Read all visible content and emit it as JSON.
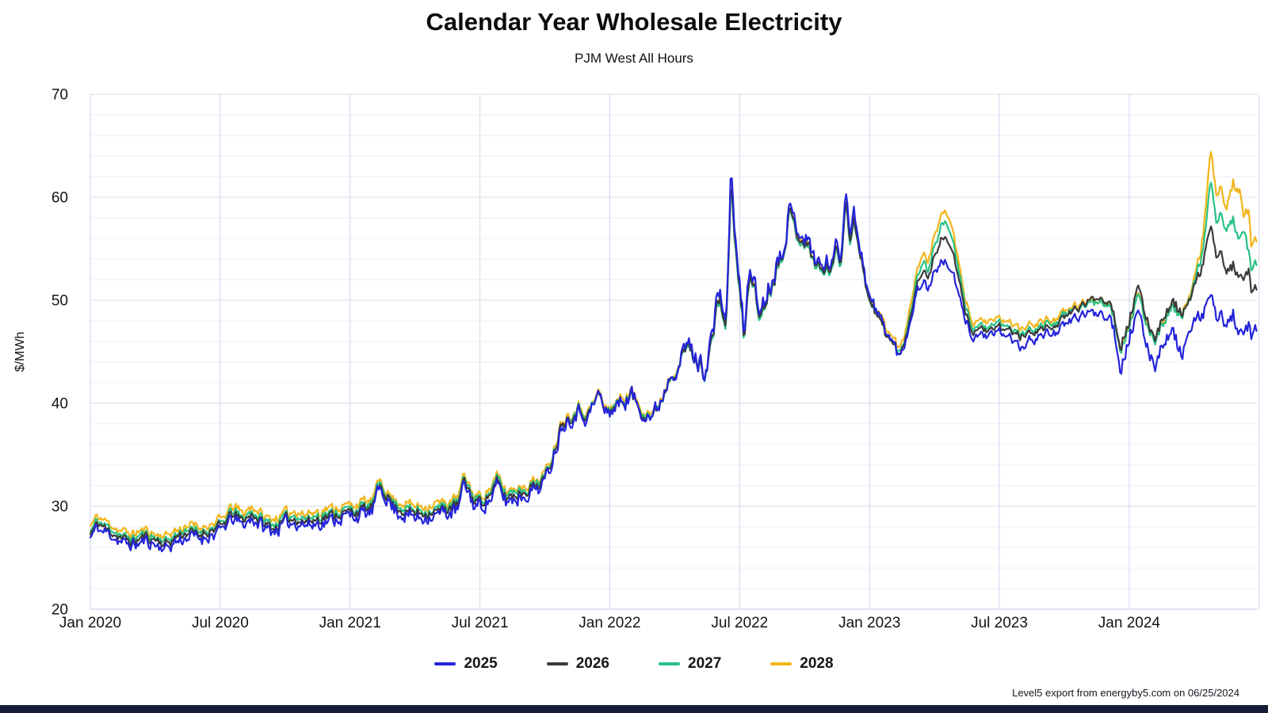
{
  "title": "Calendar Year Wholesale Electricity",
  "subtitle": "PJM West All Hours",
  "footer_note": "Level5 export from energyby5.com on 06/25/2024",
  "chart_data": {
    "type": "line",
    "title": "Calendar Year Wholesale Electricity",
    "subtitle": "PJM West All Hours",
    "xlabel": "",
    "ylabel": "$/MWh",
    "ylim": [
      20,
      70
    ],
    "y_major_ticks": [
      20,
      30,
      40,
      50,
      60,
      70
    ],
    "y_minor_step": 2,
    "x_unit": "months since Jan 2020",
    "xlim": [
      0,
      53.9
    ],
    "x_ticks": [
      {
        "pos": 0,
        "label": "Jan 2020"
      },
      {
        "pos": 6,
        "label": "Jul 2020"
      },
      {
        "pos": 12,
        "label": "Jan 2021"
      },
      {
        "pos": 18,
        "label": "Jul 2021"
      },
      {
        "pos": 24,
        "label": "Jan 2022"
      },
      {
        "pos": 30,
        "label": "Jul 2022"
      },
      {
        "pos": 36,
        "label": "Jan 2023"
      },
      {
        "pos": 42,
        "label": "Jul 2023"
      },
      {
        "pos": 48,
        "label": "Jan 2024"
      }
    ],
    "x_grid_positions": [
      0,
      6,
      12,
      18,
      24,
      30,
      36,
      42,
      48,
      54
    ],
    "grid": true,
    "legend_position": "bottom",
    "anchors_x": [
      0,
      0.3,
      1,
      1.5,
      2,
      2.5,
      3,
      3.5,
      4,
      4.5,
      5,
      5.5,
      6,
      6.6,
      7,
      7.5,
      8,
      8.5,
      9,
      9.5,
      10,
      10.5,
      11,
      11.5,
      12,
      12.5,
      13,
      13.4,
      13.8,
      14,
      14.5,
      15,
      15.5,
      16,
      16.5,
      17,
      17.3,
      17.7,
      18,
      18.4,
      18.8,
      19.2,
      19.6,
      20,
      20.5,
      21,
      21.4,
      21.8,
      22.2,
      22.6,
      23,
      23.5,
      23.8,
      24.2,
      24.6,
      25,
      25.4,
      26,
      26.4,
      26.8,
      27.2,
      27.6,
      28,
      28.4,
      28.8,
      29.1,
      29.35,
      29.6,
      29.9,
      30.2,
      30.5,
      30.9,
      31.3,
      31.7,
      32,
      32.3,
      32.7,
      33,
      33.4,
      33.8,
      34.2,
      34.5,
      34.7,
      34.9,
      35.1,
      35.3,
      35.6,
      36,
      36.5,
      37,
      37.4,
      37.7,
      38,
      38.4,
      38.7,
      39,
      39.4,
      39.7,
      40,
      40.4,
      40.8,
      41.2,
      41.6,
      42,
      42.5,
      43,
      43.5,
      44,
      44.5,
      45,
      45.5,
      46,
      46.5,
      47,
      47.3,
      47.6,
      48,
      48.4,
      48.8,
      49.2,
      49.6,
      50,
      50.4,
      50.7,
      51,
      51.3,
      51.55,
      51.75,
      52,
      52.2,
      52.5,
      52.8,
      53.1,
      53.3,
      53.5,
      53.65,
      53.8
    ],
    "series": [
      {
        "name": "2025",
        "color": "#2424DB",
        "values": [
          26.9,
          27.9,
          27.1,
          26.4,
          26.2,
          26.6,
          26.3,
          25.9,
          26.6,
          27.1,
          26.8,
          27.2,
          27.5,
          28.9,
          28.2,
          28.8,
          27.9,
          27.6,
          28.2,
          28.5,
          28.1,
          28.4,
          28.6,
          28.9,
          29.0,
          29.2,
          29.4,
          31.9,
          30.4,
          29.7,
          29.2,
          28.9,
          29.0,
          29.1,
          29.3,
          29.7,
          32.3,
          30.1,
          30.0,
          30.5,
          31.9,
          30.4,
          30.8,
          31.0,
          31.6,
          32.3,
          35.0,
          38.0,
          38.6,
          39.3,
          38.6,
          41.1,
          38.9,
          39.6,
          40.2,
          40.8,
          39.5,
          38.7,
          40.5,
          43.0,
          44.0,
          45.9,
          44.2,
          43.3,
          47.5,
          51.5,
          46.8,
          62.5,
          53.5,
          46.8,
          54.0,
          48.8,
          51.0,
          53.5,
          55.5,
          58.8,
          57.0,
          56.3,
          54.6,
          53.2,
          53.8,
          55.4,
          54.0,
          62.0,
          56.5,
          58.5,
          55.0,
          50.2,
          48.2,
          46.2,
          44.3,
          46.5,
          49.3,
          52.0,
          51.2,
          52.8,
          53.8,
          53.3,
          51.5,
          48.2,
          46.3,
          46.8,
          46.4,
          46.9,
          46.4,
          45.2,
          46.2,
          46.6,
          46.9,
          47.5,
          48.3,
          48.6,
          48.9,
          48.7,
          47.4,
          43.4,
          46.5,
          48.6,
          45.6,
          43.9,
          46.1,
          47.0,
          44.6,
          46.5,
          47.5,
          48.4,
          49.5,
          50.4,
          48.3,
          49.3,
          47.2,
          48.6,
          46.4,
          46.2,
          47.6,
          45.9,
          46.9
        ]
      },
      {
        "name": "2026",
        "color": "#3B3B3B",
        "values": [
          27.3,
          28.3,
          27.5,
          26.8,
          26.6,
          27.0,
          26.7,
          26.4,
          27.0,
          27.5,
          27.2,
          27.6,
          27.9,
          29.3,
          28.6,
          29.2,
          28.3,
          28.0,
          28.6,
          28.9,
          28.5,
          28.8,
          29.0,
          29.3,
          29.4,
          29.6,
          29.8,
          32.1,
          30.7,
          30.1,
          29.6,
          29.3,
          29.4,
          29.5,
          29.7,
          30.1,
          32.6,
          30.5,
          30.4,
          30.9,
          32.3,
          30.8,
          31.2,
          31.4,
          32.0,
          32.6,
          35.2,
          38.2,
          38.8,
          39.4,
          38.8,
          41.0,
          39.0,
          39.7,
          40.2,
          40.7,
          39.5,
          38.7,
          40.4,
          42.8,
          43.8,
          45.6,
          44.0,
          43.1,
          47.0,
          50.8,
          46.4,
          61.5,
          53.0,
          46.4,
          53.4,
          48.4,
          50.6,
          53.0,
          55.0,
          58.4,
          56.5,
          55.8,
          54.1,
          52.8,
          53.3,
          54.8,
          53.5,
          60.8,
          55.8,
          57.8,
          54.5,
          49.8,
          47.9,
          46.0,
          44.4,
          46.7,
          49.8,
          53.0,
          52.2,
          54.3,
          56.2,
          55.6,
          53.2,
          49.0,
          46.9,
          47.3,
          46.9,
          47.4,
          47.0,
          46.4,
          46.9,
          47.2,
          47.5,
          48.2,
          49.1,
          49.7,
          50.3,
          50.2,
          48.9,
          45.5,
          48.0,
          51.2,
          48.1,
          46.5,
          48.6,
          49.8,
          48.8,
          49.5,
          51.0,
          52.8,
          55.0,
          57.1,
          54.3,
          55.2,
          52.4,
          53.4,
          52.0,
          51.6,
          52.9,
          50.4,
          51.0
        ]
      },
      {
        "name": "2027",
        "color": "#28C285",
        "values": [
          27.6,
          28.6,
          27.8,
          27.1,
          26.9,
          27.3,
          27.0,
          26.7,
          27.3,
          27.8,
          27.5,
          27.9,
          28.2,
          29.6,
          28.9,
          29.5,
          28.6,
          28.3,
          28.9,
          29.2,
          28.8,
          29.1,
          29.3,
          29.6,
          29.7,
          29.9,
          30.1,
          32.3,
          30.9,
          30.4,
          29.9,
          29.6,
          29.7,
          29.8,
          30.0,
          30.4,
          32.8,
          30.8,
          30.7,
          31.2,
          32.6,
          31.1,
          31.5,
          31.7,
          32.2,
          32.8,
          35.3,
          38.3,
          38.9,
          39.5,
          38.9,
          41.0,
          39.1,
          39.8,
          40.3,
          40.8,
          39.6,
          38.8,
          40.4,
          42.8,
          43.8,
          45.5,
          44.0,
          43.0,
          46.8,
          50.5,
          46.2,
          60.9,
          52.8,
          46.2,
          53.2,
          48.2,
          50.4,
          52.8,
          54.8,
          58.2,
          56.3,
          55.6,
          53.9,
          52.6,
          53.1,
          54.6,
          53.3,
          60.4,
          55.5,
          57.5,
          54.3,
          49.7,
          48.0,
          46.2,
          44.7,
          47.0,
          50.3,
          53.8,
          53.0,
          55.3,
          57.6,
          57.0,
          54.2,
          49.6,
          47.3,
          47.6,
          47.2,
          47.7,
          47.3,
          46.7,
          47.2,
          47.5,
          47.8,
          48.4,
          49.2,
          49.5,
          49.9,
          49.8,
          48.5,
          45.2,
          47.6,
          50.3,
          47.6,
          46.2,
          48.1,
          49.3,
          48.5,
          49.5,
          51.3,
          53.8,
          57.0,
          61.6,
          57.7,
          58.9,
          56.6,
          57.9,
          55.6,
          56.3,
          54.9,
          52.6,
          53.4
        ]
      },
      {
        "name": "2028",
        "color": "#F2B51B",
        "values": [
          28.0,
          29.1,
          28.2,
          27.5,
          27.3,
          27.7,
          27.4,
          27.1,
          27.7,
          28.2,
          27.9,
          28.3,
          28.6,
          30.0,
          29.3,
          29.9,
          29.0,
          28.7,
          29.3,
          29.6,
          29.2,
          29.5,
          29.7,
          30.0,
          30.1,
          30.3,
          30.5,
          32.6,
          31.2,
          30.7,
          30.3,
          30.0,
          30.1,
          30.2,
          30.4,
          30.8,
          33.1,
          31.1,
          31.0,
          31.5,
          32.9,
          31.4,
          31.8,
          32.0,
          32.5,
          33.1,
          35.5,
          38.5,
          39.1,
          39.7,
          39.1,
          41.2,
          39.3,
          40.0,
          40.5,
          41.0,
          39.8,
          39.0,
          40.6,
          43.0,
          44.0,
          45.7,
          44.2,
          43.2,
          47.0,
          50.7,
          46.4,
          61.2,
          53.0,
          46.4,
          53.4,
          48.4,
          50.6,
          53.0,
          55.0,
          58.5,
          56.6,
          55.9,
          54.2,
          52.9,
          53.4,
          54.9,
          53.6,
          60.7,
          55.8,
          57.8,
          54.6,
          50.0,
          48.4,
          46.6,
          45.1,
          47.5,
          51.0,
          54.6,
          53.8,
          56.2,
          58.7,
          58.1,
          55.0,
          50.2,
          47.8,
          48.1,
          47.7,
          48.2,
          47.8,
          47.2,
          47.7,
          48.0,
          48.2,
          48.8,
          49.5,
          49.8,
          50.1,
          50.0,
          48.7,
          45.4,
          47.8,
          50.5,
          47.8,
          46.4,
          48.3,
          49.5,
          48.7,
          49.8,
          51.7,
          54.6,
          59.0,
          64.6,
          60.2,
          61.5,
          58.6,
          61.4,
          60.3,
          57.6,
          58.9,
          54.9,
          55.7
        ]
      }
    ],
    "colors": {
      "grid_minor": "#EDEFF2",
      "grid_major": "#D8DCE3",
      "grid_vertical": "#CBD6EC",
      "footer_bar": "#171D38"
    }
  },
  "render_hints": {
    "seed": 11,
    "step_months": 0.06,
    "jitter_profile": [
      [
        0,
        0.42
      ],
      [
        20,
        0.5
      ],
      [
        23,
        0.55
      ],
      [
        27,
        0.6
      ],
      [
        28.6,
        0.8
      ],
      [
        31,
        0.8
      ],
      [
        33,
        0.65
      ],
      [
        36,
        0.55
      ],
      [
        40.3,
        0.3
      ],
      [
        46.5,
        0.32
      ],
      [
        47.2,
        0.5
      ],
      [
        53.9,
        0.5
      ]
    ],
    "series_volatility": [
      1.32,
      1.0,
      0.95,
      1.0
    ],
    "own_noise": 0.1,
    "smoothing": 0.45
  }
}
